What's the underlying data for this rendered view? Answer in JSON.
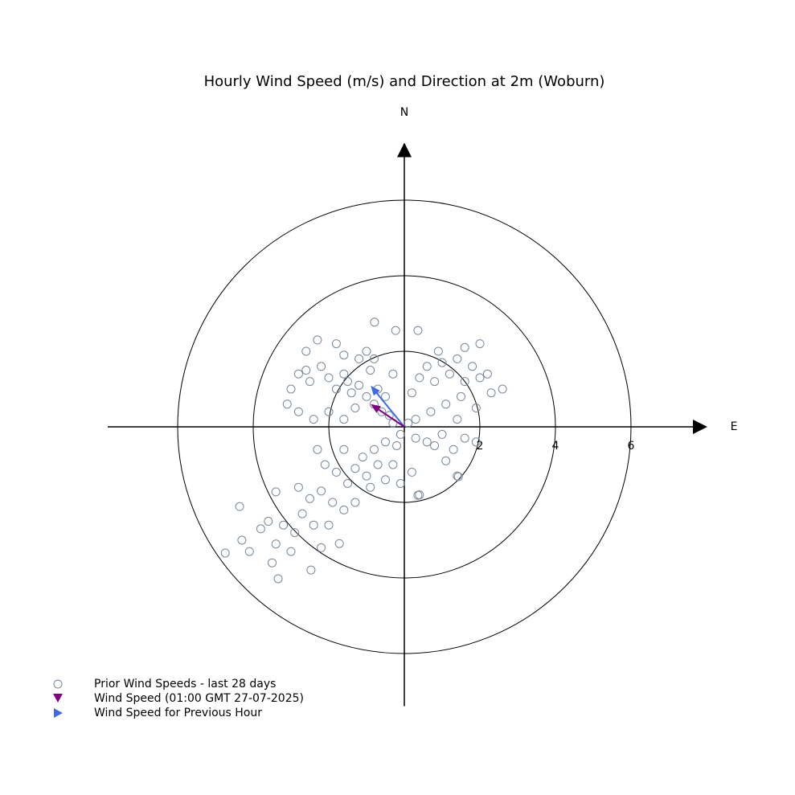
{
  "chart_data": {
    "type": "scatter",
    "title": "Hourly Wind Speed (m/s) and Direction at 2m (Woburn)",
    "north_label": "N",
    "east_label": "E",
    "xlim": [
      -8,
      8
    ],
    "ylim": [
      -7.5,
      7.5
    ],
    "xticks": [
      2,
      4,
      6
    ],
    "series": [
      {
        "name": "Prior Wind Speeds - last 28 days",
        "color": "#778899",
        "x": [
          -2.8,
          -2.6,
          -2.5,
          -2.2,
          -2.0,
          -1.8,
          -1.6,
          -1.5,
          -1.4,
          -1.2,
          -1.0,
          -0.9,
          -0.8,
          -0.7,
          -0.6,
          -0.5,
          -0.4,
          -2.6,
          -2.3,
          -1.8,
          -1.6,
          -1.2,
          -1.0,
          -0.8,
          -0.3,
          -2.8,
          -2.4,
          -2.0,
          -1.6,
          -1.3,
          -3.0,
          -3.1,
          0.2,
          0.4,
          0.6,
          0.8,
          1.0,
          1.2,
          1.4,
          1.6,
          1.8,
          2.0,
          2.2,
          1.5,
          1.1,
          0.7,
          0.3,
          1.6,
          2.0,
          0.9,
          1.9,
          1.4,
          2.3,
          2.6,
          0.3,
          0.6,
          1.0,
          1.3,
          1.1,
          0.8,
          1.6,
          1.9,
          1.4,
          0.4,
          0.2,
          -0.2,
          -0.1,
          0.1,
          -0.3,
          -0.5,
          -0.8,
          -1.1,
          -1.3,
          -1.0,
          -0.7,
          -0.5,
          -0.9,
          -1.5,
          -1.8,
          -2.1,
          -2.3,
          -1.6,
          -0.3,
          -0.1,
          -1.9,
          -2.2,
          -2.5,
          -2.7,
          -2.4,
          -2.9,
          -3.2,
          -3.4,
          -3.0,
          -3.6,
          -3.8,
          -4.1,
          -4.3,
          -4.74,
          -4.36,
          -3.34,
          -2.47,
          -1.72,
          -3.4,
          -2.0,
          -1.6,
          -1.3,
          -2.8,
          -3.5,
          -2.2,
          -0.79,
          -0.23,
          0.36,
          1.43,
          0.36
        ],
        "values": [
          1.4,
          1.5,
          1.2,
          1.6,
          1.3,
          1.0,
          1.4,
          1.2,
          0.9,
          1.1,
          0.8,
          1.5,
          0.6,
          1.0,
          0.4,
          0.8,
          0.3,
          2.0,
          2.3,
          2.2,
          1.9,
          1.8,
          2.0,
          1.8,
          1.4,
          0.4,
          0.2,
          0.4,
          0.2,
          0.5,
          1.0,
          0.6,
          0.9,
          1.3,
          1.6,
          1.2,
          1.7,
          1.4,
          1.8,
          1.2,
          1.6,
          1.3,
          1.4,
          0.8,
          0.6,
          0.4,
          0.2,
          2.1,
          2.2,
          2.0,
          0.5,
          0.2,
          0.9,
          1.0,
          -0.3,
          -0.4,
          -0.2,
          -0.6,
          -0.9,
          -0.5,
          -0.3,
          -0.4,
          -1.3,
          -1.8,
          -1.2,
          -0.5,
          -0.2,
          0.1,
          0.1,
          -0.4,
          -0.6,
          -0.8,
          -1.1,
          -1.3,
          -1.0,
          -1.4,
          -1.6,
          -1.5,
          -1.2,
          -1.0,
          -0.6,
          -0.6,
          -1.0,
          -1.5,
          -2.0,
          -1.7,
          -1.9,
          -2.3,
          -2.6,
          -2.8,
          -2.6,
          -3.1,
          -3.3,
          -2.5,
          -2.7,
          -3.3,
          -3.0,
          -3.34,
          -2.11,
          -4.02,
          -3.79,
          -3.09,
          -1.72,
          -2.6,
          -2.2,
          -2.0,
          -1.6,
          -3.6,
          -3.2,
          2.77,
          2.55,
          2.55,
          -1.32,
          -1.81
        ]
      },
      {
        "name": "Wind Speed (01:00 GMT 27-07-2025)",
        "color": "#800080",
        "x": [
          -0.89
        ],
        "values": [
          0.6
        ]
      },
      {
        "name": "Wind Speed for Previous Hour",
        "color": "#4169e1",
        "x": [
          -0.89
        ],
        "values": [
          1.09
        ]
      }
    ]
  }
}
